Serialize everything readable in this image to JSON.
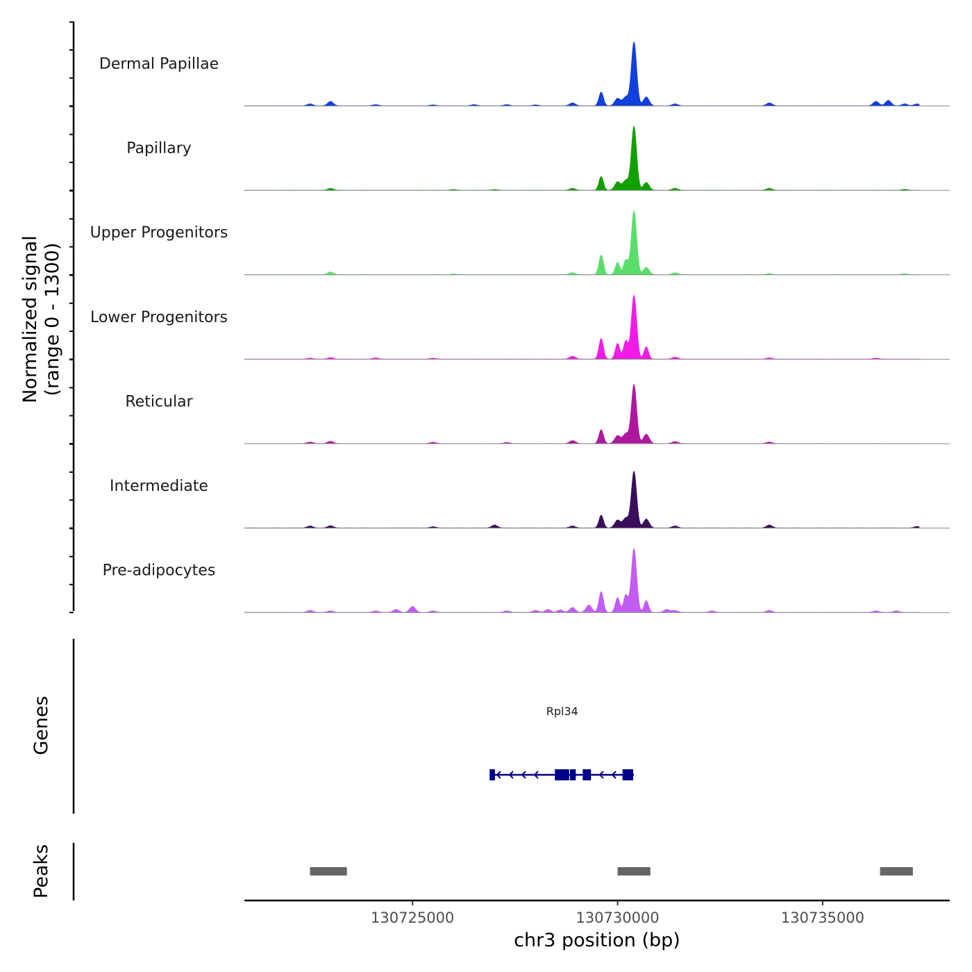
{
  "chart_data": {
    "type": "area",
    "title": "",
    "xlabel": "chr3 position (bp)",
    "ylabel": "Normalized signal",
    "ylabel_range": "(range 0 - 1300)",
    "ylim": [
      0,
      1300
    ],
    "xlim": [
      130720900,
      130738100
    ],
    "x_ticks": [
      {
        "value": 130725000,
        "label": "130725000"
      },
      {
        "value": 130730000,
        "label": "130730000"
      },
      {
        "value": 130735000,
        "label": "130735000"
      }
    ],
    "series": [
      {
        "name": "Dermal Papillae",
        "color": "#1240dc",
        "peaks": [
          [
            130722500,
            40
          ],
          [
            130723000,
            90
          ],
          [
            130724100,
            25
          ],
          [
            130725500,
            20
          ],
          [
            130726500,
            25
          ],
          [
            130727300,
            25
          ],
          [
            130728000,
            20
          ],
          [
            130728900,
            60
          ],
          [
            130729600,
            280
          ],
          [
            130730000,
            150
          ],
          [
            130730200,
            180
          ],
          [
            130730400,
            1300
          ],
          [
            130730700,
            180
          ],
          [
            130731400,
            40
          ],
          [
            130733700,
            60
          ],
          [
            130736300,
            90
          ],
          [
            130736600,
            110
          ],
          [
            130737000,
            40
          ],
          [
            130737300,
            40
          ]
        ]
      },
      {
        "name": "Papillary",
        "color": "#12a000",
        "peaks": [
          [
            130723000,
            40
          ],
          [
            130726000,
            15
          ],
          [
            130727000,
            15
          ],
          [
            130728900,
            40
          ],
          [
            130729600,
            280
          ],
          [
            130730000,
            170
          ],
          [
            130730200,
            200
          ],
          [
            130730400,
            1300
          ],
          [
            130730700,
            160
          ],
          [
            130731400,
            40
          ],
          [
            130733700,
            40
          ],
          [
            130737000,
            20
          ]
        ]
      },
      {
        "name": "Upper Progenitors",
        "color": "#5ade6b",
        "peaks": [
          [
            130723000,
            55
          ],
          [
            130726000,
            15
          ],
          [
            130728900,
            40
          ],
          [
            130729600,
            400
          ],
          [
            130730000,
            250
          ],
          [
            130730200,
            300
          ],
          [
            130730400,
            1300
          ],
          [
            130730700,
            150
          ],
          [
            130731400,
            40
          ],
          [
            130733700,
            20
          ],
          [
            130737000,
            20
          ]
        ]
      },
      {
        "name": "Lower Progenitors",
        "color": "#f21be6",
        "peaks": [
          [
            130722500,
            20
          ],
          [
            130723000,
            30
          ],
          [
            130724100,
            25
          ],
          [
            130725500,
            20
          ],
          [
            130728900,
            60
          ],
          [
            130729600,
            420
          ],
          [
            130730000,
            320
          ],
          [
            130730200,
            370
          ],
          [
            130730400,
            1300
          ],
          [
            130730700,
            250
          ],
          [
            130731400,
            40
          ],
          [
            130733700,
            25
          ],
          [
            130736300,
            20
          ]
        ]
      },
      {
        "name": "Reticular",
        "color": "#b0179f",
        "peaks": [
          [
            130722500,
            30
          ],
          [
            130723000,
            45
          ],
          [
            130725500,
            25
          ],
          [
            130727300,
            20
          ],
          [
            130728900,
            60
          ],
          [
            130729600,
            280
          ],
          [
            130730000,
            160
          ],
          [
            130730200,
            200
          ],
          [
            130730400,
            1200
          ],
          [
            130730700,
            190
          ],
          [
            130731400,
            40
          ],
          [
            130733700,
            30
          ]
        ]
      },
      {
        "name": "Intermediate",
        "color": "#3a0d5c",
        "peaks": [
          [
            130722500,
            40
          ],
          [
            130723000,
            45
          ],
          [
            130725500,
            25
          ],
          [
            130727000,
            60
          ],
          [
            130728900,
            40
          ],
          [
            130729600,
            260
          ],
          [
            130730000,
            160
          ],
          [
            130730200,
            200
          ],
          [
            130730400,
            1150
          ],
          [
            130730700,
            180
          ],
          [
            130731400,
            40
          ],
          [
            130733700,
            60
          ],
          [
            130737300,
            30
          ]
        ]
      },
      {
        "name": "Pre-adipocytes",
        "color": "#c25cf2",
        "peaks": [
          [
            130722500,
            40
          ],
          [
            130723000,
            30
          ],
          [
            130724100,
            30
          ],
          [
            130724600,
            60
          ],
          [
            130725000,
            120
          ],
          [
            130725500,
            30
          ],
          [
            130727300,
            30
          ],
          [
            130728000,
            40
          ],
          [
            130728300,
            60
          ],
          [
            130728600,
            50
          ],
          [
            130728900,
            100
          ],
          [
            130729300,
            150
          ],
          [
            130729600,
            420
          ],
          [
            130730000,
            300
          ],
          [
            130730200,
            350
          ],
          [
            130730400,
            1300
          ],
          [
            130730700,
            240
          ],
          [
            130731200,
            60
          ],
          [
            130731400,
            40
          ],
          [
            130732300,
            30
          ],
          [
            130733700,
            40
          ],
          [
            130736300,
            30
          ],
          [
            130736800,
            30
          ]
        ]
      }
    ],
    "genes": [
      {
        "name": "Rpl34",
        "strand": "-",
        "color": "#00008b",
        "start": 130726900,
        "end": 130730400,
        "exons": [
          [
            130726880,
            130727010
          ],
          [
            130728470,
            130728820
          ],
          [
            130728840,
            130728980
          ],
          [
            130729150,
            130729350
          ],
          [
            130730120,
            130730380
          ]
        ]
      }
    ],
    "peaks_track": {
      "label": "Peaks",
      "color": "#666666",
      "regions": [
        [
          130722500,
          130723400
        ],
        [
          130730000,
          130730800
        ],
        [
          130736400,
          130737200
        ]
      ]
    },
    "genes_track_label": "Genes"
  }
}
